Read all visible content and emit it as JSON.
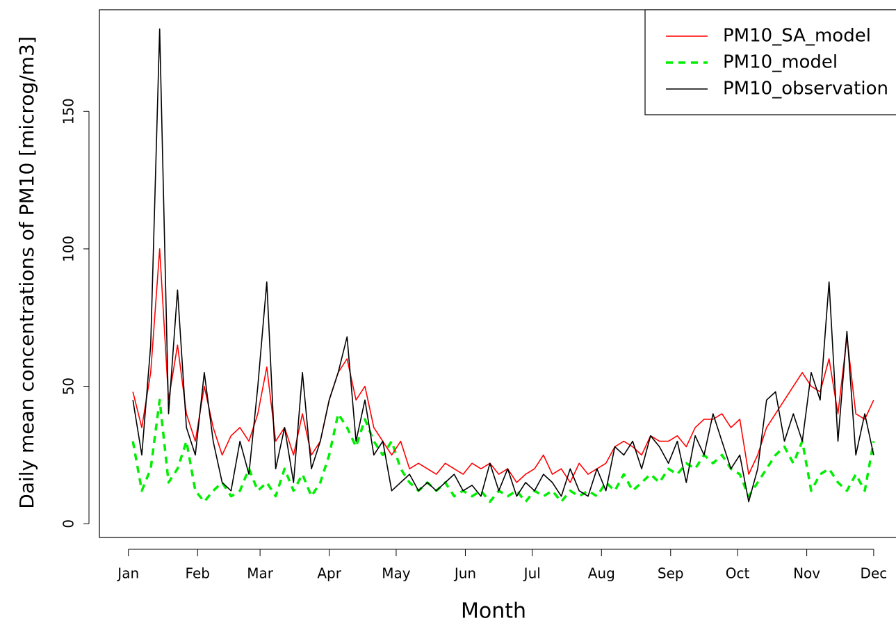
{
  "chart_data": {
    "type": "line",
    "y_label": "Daily mean concentrations of PM10 [microg/m3]",
    "x_label": "Month",
    "x": [
      3,
      7,
      11,
      15,
      19,
      23,
      27,
      31,
      35,
      39,
      43,
      47,
      51,
      55,
      59,
      63,
      67,
      71,
      75,
      79,
      83,
      87,
      91,
      95,
      99,
      103,
      107,
      111,
      115,
      119,
      123,
      127,
      131,
      135,
      139,
      143,
      147,
      151,
      155,
      159,
      163,
      167,
      171,
      175,
      179,
      183,
      187,
      191,
      195,
      199,
      203,
      207,
      211,
      215,
      219,
      223,
      227,
      231,
      235,
      239,
      243,
      247,
      251,
      255,
      259,
      263,
      267,
      271,
      275,
      279,
      283,
      287,
      291,
      295,
      299,
      303,
      307,
      311,
      315,
      319,
      323,
      327,
      331,
      335
    ],
    "series": [
      {
        "name": "PM10_SA_model",
        "color": "#ff0000",
        "dash": "none",
        "values": [
          48,
          35,
          55,
          100,
          45,
          65,
          40,
          30,
          50,
          35,
          25,
          32,
          35,
          30,
          40,
          57,
          30,
          35,
          25,
          40,
          25,
          30,
          45,
          55,
          60,
          45,
          50,
          35,
          30,
          25,
          30,
          20,
          22,
          20,
          18,
          22,
          20,
          18,
          22,
          20,
          22,
          18,
          20,
          15,
          18,
          20,
          25,
          18,
          20,
          15,
          22,
          18,
          20,
          22,
          28,
          30,
          28,
          25,
          32,
          30,
          30,
          32,
          28,
          35,
          38,
          38,
          40,
          35,
          38,
          18,
          25,
          35,
          40,
          45,
          50,
          55,
          50,
          48,
          60,
          40,
          68,
          40,
          38,
          45
        ]
      },
      {
        "name": "PM10_model",
        "color": "#00ee00",
        "dash": "10 8",
        "values": [
          30,
          12,
          20,
          45,
          15,
          20,
          30,
          12,
          8,
          12,
          15,
          10,
          12,
          20,
          12,
          15,
          10,
          20,
          12,
          18,
          10,
          15,
          25,
          40,
          35,
          28,
          38,
          30,
          25,
          30,
          20,
          15,
          12,
          15,
          12,
          15,
          10,
          12,
          10,
          12,
          8,
          12,
          10,
          12,
          8,
          12,
          10,
          12,
          8,
          12,
          10,
          12,
          10,
          15,
          12,
          18,
          12,
          15,
          18,
          15,
          20,
          18,
          22,
          20,
          25,
          22,
          25,
          20,
          18,
          10,
          15,
          20,
          25,
          28,
          22,
          30,
          12,
          18,
          20,
          15,
          12,
          18,
          12,
          30
        ]
      },
      {
        "name": "PM10_observation",
        "color": "#000000",
        "dash": "none",
        "values": [
          45,
          25,
          65,
          180,
          40,
          85,
          35,
          25,
          55,
          30,
          15,
          12,
          30,
          18,
          50,
          88,
          20,
          35,
          15,
          55,
          20,
          30,
          45,
          55,
          68,
          30,
          45,
          25,
          30,
          12,
          15,
          18,
          12,
          15,
          12,
          15,
          18,
          12,
          14,
          10,
          22,
          12,
          20,
          10,
          15,
          12,
          18,
          15,
          10,
          20,
          12,
          10,
          20,
          12,
          28,
          25,
          30,
          20,
          32,
          28,
          22,
          30,
          15,
          32,
          25,
          40,
          30,
          20,
          25,
          8,
          20,
          45,
          48,
          30,
          40,
          30,
          55,
          45,
          88,
          30,
          70,
          25,
          40,
          25
        ]
      }
    ],
    "xlim": [
      -12,
      345
    ],
    "ylim": [
      -5,
      187
    ],
    "xticks": [
      {
        "value": 1,
        "label": "Jan"
      },
      {
        "value": 32,
        "label": "Feb"
      },
      {
        "value": 60,
        "label": "Mar"
      },
      {
        "value": 91,
        "label": "Apr"
      },
      {
        "value": 121,
        "label": "May"
      },
      {
        "value": 152,
        "label": "Jun"
      },
      {
        "value": 182,
        "label": "Jul"
      },
      {
        "value": 213,
        "label": "Aug"
      },
      {
        "value": 244,
        "label": "Sep"
      },
      {
        "value": 274,
        "label": "Oct"
      },
      {
        "value": 305,
        "label": "Nov"
      },
      {
        "value": 335,
        "label": "Dec"
      }
    ],
    "yticks": [
      0,
      50,
      100,
      150
    ],
    "legend": "top-right"
  }
}
